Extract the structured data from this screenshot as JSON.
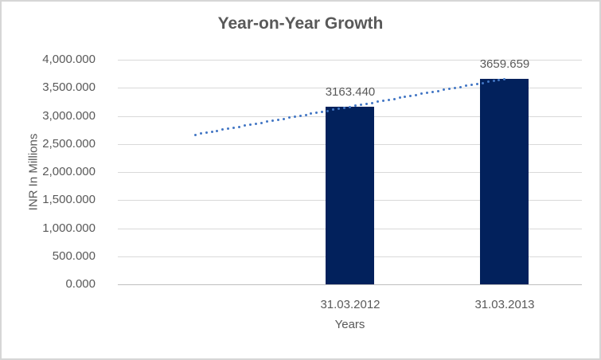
{
  "chart": {
    "title": "Year-on-Year Growth",
    "x_axis_title": "Years",
    "y_axis_title": "INR In Millions"
  },
  "chart_data": {
    "type": "bar",
    "title": "Year-on-Year Growth",
    "xlabel": "Years",
    "ylabel": "INR In Millions",
    "categories": [
      "31.03.2012",
      "31.03.2013"
    ],
    "values": [
      3163.44,
      3659.659
    ],
    "data_labels": [
      "3163.440",
      "3659.659"
    ],
    "ylim": [
      0,
      4000
    ],
    "ytick_step": 500,
    "ytick_labels": [
      "0.000",
      "500.000",
      "1,000.000",
      "1,500.000",
      "2,000.000",
      "2,500.000",
      "3,000.000",
      "3,500.000",
      "4,000.000"
    ],
    "grid": true,
    "legend": "none",
    "trendline": {
      "type": "linear",
      "style": "dotted",
      "start_value": 2667.2,
      "end_value": 3659.659,
      "note": "extends from one category band before first bar to second bar"
    },
    "colors": {
      "bar": "#02215c",
      "trendline": "#4276c4",
      "gridline": "#d9d9d9",
      "axis_line": "#bfbfbf",
      "text": "#595959",
      "border": "#d6d6d6"
    }
  }
}
